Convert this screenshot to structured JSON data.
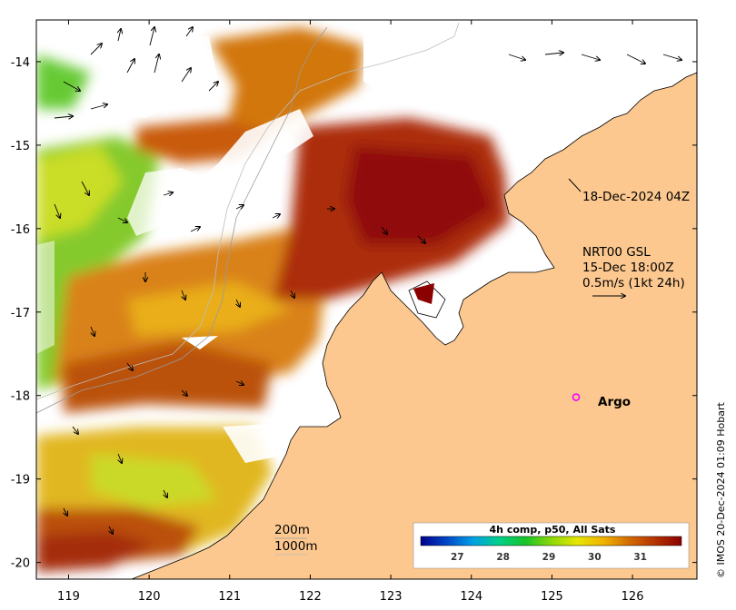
{
  "map": {
    "lon_range": [
      118.6,
      126.8
    ],
    "lat_range": [
      -20.2,
      -13.5
    ],
    "lon_ticks": [
      119,
      120,
      121,
      122,
      123,
      124,
      125,
      126
    ],
    "lat_ticks": [
      -14,
      -15,
      -16,
      -17,
      -18,
      -19,
      -20
    ]
  },
  "annotations": {
    "image_time": "18-Dec-2024 04Z",
    "current_source": "NRT00 GSL",
    "current_time": "15-Dec 18:00Z",
    "current_scale": "0.5m/s (1kt 24h)"
  },
  "argo": {
    "label": "Argo",
    "lon": 125.3,
    "lat": -18.02,
    "color": "#ff00ff"
  },
  "isobaths": {
    "depth1": "200m",
    "depth2": "1000m"
  },
  "colorbar": {
    "title": "4h comp, p50, All Sats",
    "tick_labels": [
      "27",
      "28",
      "29",
      "30",
      "31"
    ],
    "range": [
      26.2,
      31.9
    ],
    "colors": [
      "#00008b",
      "#0047c8",
      "#00a0e6",
      "#00d08a",
      "#16c32a",
      "#8cd80a",
      "#e6e600",
      "#f0b400",
      "#d26a00",
      "#b43200",
      "#8b0000"
    ]
  },
  "credit": "© IMOS 20-Dec-2024 01:09 Hobart",
  "colors": {
    "land": "#fcc88f",
    "no_data": "#ffffff"
  }
}
